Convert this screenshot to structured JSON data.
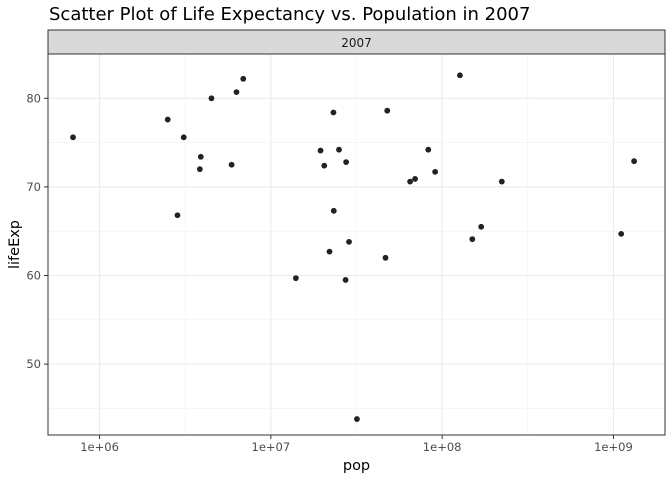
{
  "chart_data": {
    "type": "scatter",
    "title": "Scatter Plot of Life Expectancy vs. Population in 2007",
    "facet_label": "2007",
    "xlabel": "pop",
    "ylabel": "lifeExp",
    "x_scale": "log10",
    "xlim": [
      500000,
      2000000000
    ],
    "ylim": [
      42,
      85
    ],
    "x_ticks": [
      1000000,
      10000000,
      100000000,
      1000000000
    ],
    "x_tick_labels": [
      "1e+06",
      "1e+07",
      "1e+08",
      "1e+09"
    ],
    "y_ticks": [
      50,
      60,
      70,
      80
    ],
    "y_tick_labels": [
      "50",
      "60",
      "70",
      "80"
    ],
    "grid": true,
    "theme": "black-and-white",
    "point_color": "#222222",
    "points": [
      {
        "x": 700000,
        "y": 75.6
      },
      {
        "x": 2500000,
        "y": 77.6
      },
      {
        "x": 2850000,
        "y": 66.8
      },
      {
        "x": 3100000,
        "y": 75.6
      },
      {
        "x": 3900000,
        "y": 73.4
      },
      {
        "x": 3850000,
        "y": 72.0
      },
      {
        "x": 4500000,
        "y": 80.0
      },
      {
        "x": 5900000,
        "y": 72.5
      },
      {
        "x": 6300000,
        "y": 80.7
      },
      {
        "x": 6900000,
        "y": 82.2
      },
      {
        "x": 14000000,
        "y": 59.7
      },
      {
        "x": 19500000,
        "y": 74.1
      },
      {
        "x": 20500000,
        "y": 72.4
      },
      {
        "x": 22000000,
        "y": 62.7
      },
      {
        "x": 23200000,
        "y": 78.4
      },
      {
        "x": 23300000,
        "y": 67.3
      },
      {
        "x": 25000000,
        "y": 74.2
      },
      {
        "x": 27300000,
        "y": 59.5
      },
      {
        "x": 27500000,
        "y": 72.8
      },
      {
        "x": 28600000,
        "y": 63.8
      },
      {
        "x": 31800000,
        "y": 43.8
      },
      {
        "x": 46700000,
        "y": 62.0
      },
      {
        "x": 47800000,
        "y": 78.6
      },
      {
        "x": 65000000,
        "y": 70.6
      },
      {
        "x": 69500000,
        "y": 70.9
      },
      {
        "x": 83000000,
        "y": 74.2
      },
      {
        "x": 91000000,
        "y": 71.7
      },
      {
        "x": 127000000,
        "y": 82.6
      },
      {
        "x": 150000000,
        "y": 64.1
      },
      {
        "x": 169000000,
        "y": 65.5
      },
      {
        "x": 223000000,
        "y": 70.6
      },
      {
        "x": 1110000000,
        "y": 64.7
      },
      {
        "x": 1320000000,
        "y": 72.9
      }
    ]
  }
}
